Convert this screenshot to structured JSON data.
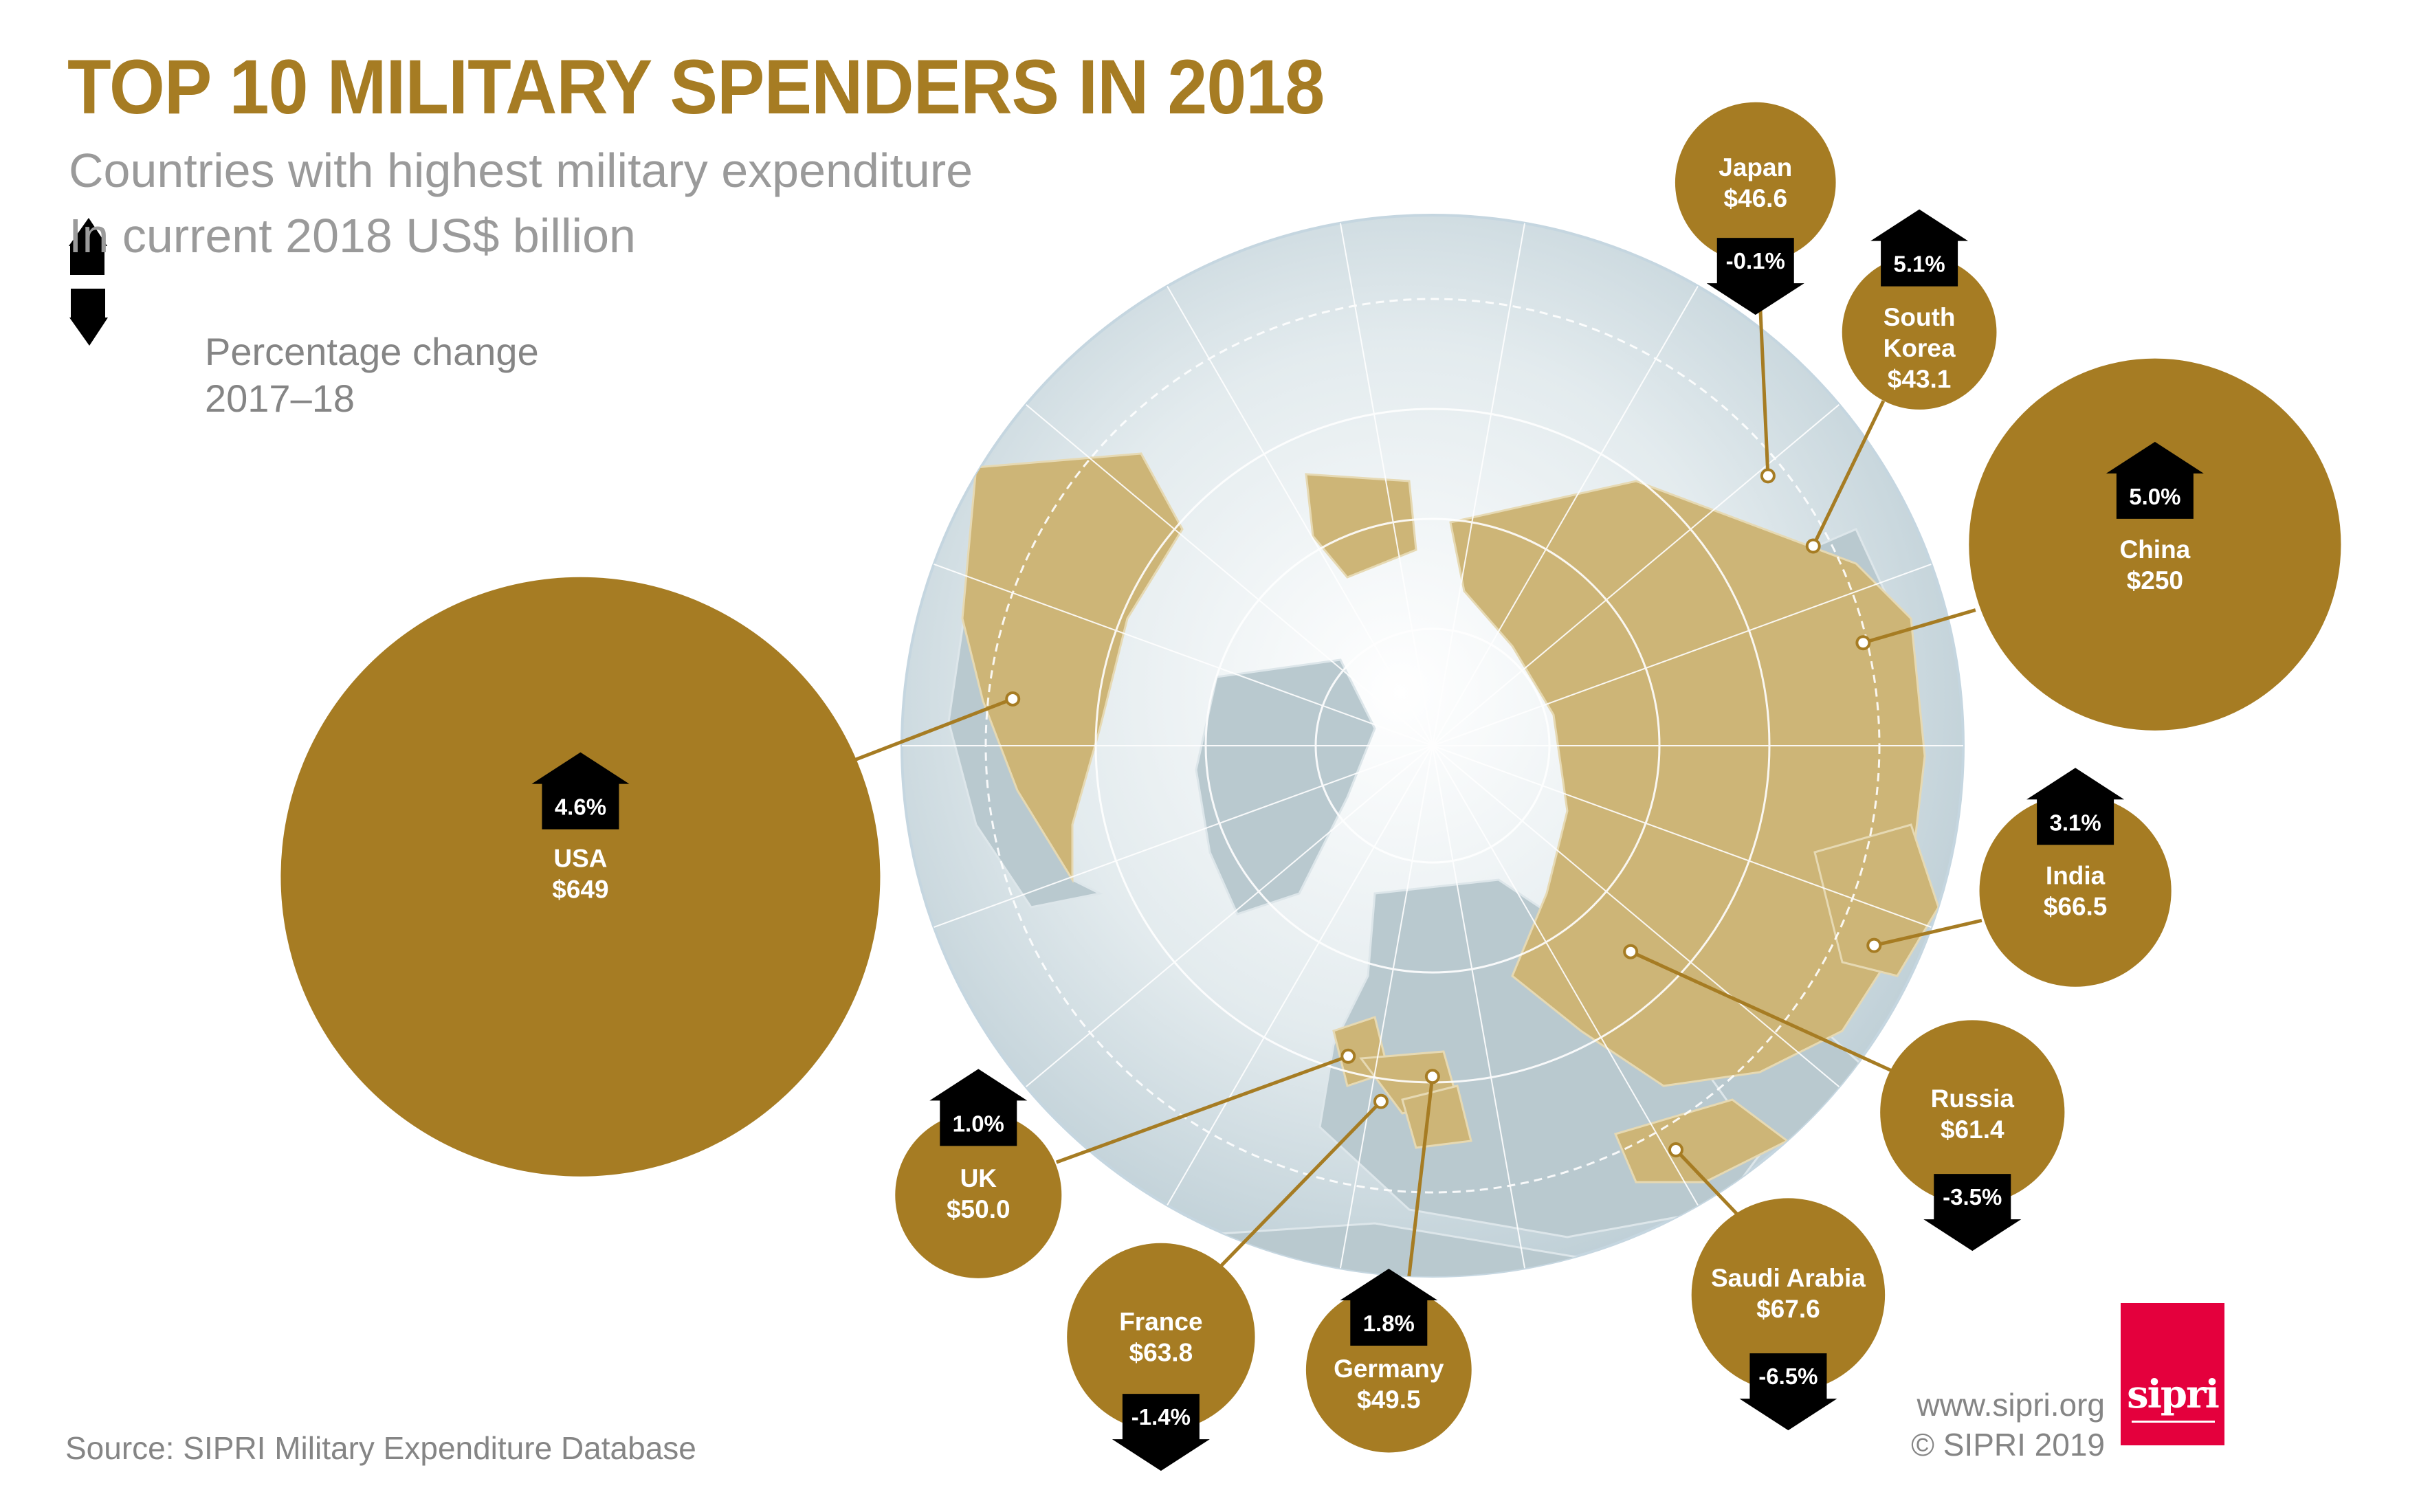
{
  "header": {
    "title": "TOP 10 MILITARY SPENDERS IN 2018",
    "subtitle_1": "Countries with highest military expenditure",
    "subtitle_2": "In current 2018 US$ billion"
  },
  "legend": {
    "line_1": "Percentage change",
    "line_2": "2017–18",
    "icons": [
      "arrow-up-icon",
      "arrow-down-icon"
    ]
  },
  "footer": {
    "source": "Source: SIPRI Military Expenditure Database",
    "url": "www.sipri.org",
    "copyright": "© SIPRI 2019",
    "logo_text": "sipri"
  },
  "colors": {
    "bubble": "#a67c23",
    "title": "#a67c23",
    "land_highlight": "#cdb577",
    "logo": "#e4003d",
    "arrow": "#000000"
  },
  "chart_data": {
    "type": "bubble-map",
    "unit": "US$ billion",
    "countries": [
      {
        "name": "USA",
        "value_label": "$649",
        "value": 649,
        "change_label": "4.6%",
        "change": 4.6
      },
      {
        "name": "China",
        "value_label": "$250",
        "value": 250,
        "change_label": "5.0%",
        "change": 5.0
      },
      {
        "name": "Saudi Arabia",
        "value_label": "$67.6",
        "value": 67.6,
        "change_label": "-6.5%",
        "change": -6.5
      },
      {
        "name": "India",
        "value_label": "$66.5",
        "value": 66.5,
        "change_label": "3.1%",
        "change": 3.1
      },
      {
        "name": "France",
        "value_label": "$63.8",
        "value": 63.8,
        "change_label": "-1.4%",
        "change": -1.4
      },
      {
        "name": "Russia",
        "value_label": "$61.4",
        "value": 61.4,
        "change_label": "-3.5%",
        "change": -3.5
      },
      {
        "name": "UK",
        "value_label": "$50.0",
        "value": 50.0,
        "change_label": "1.0%",
        "change": 1.0
      },
      {
        "name": "Germany",
        "value_label": "$49.5",
        "value": 49.5,
        "change_label": "1.8%",
        "change": 1.8
      },
      {
        "name": "Japan",
        "value_label": "$46.6",
        "value": 46.6,
        "change_label": "-0.1%",
        "change": -0.1
      },
      {
        "name": "South Korea",
        "value_label": "$43.1",
        "value": 43.1,
        "change_label": "5.1%",
        "change": 5.1
      }
    ]
  }
}
